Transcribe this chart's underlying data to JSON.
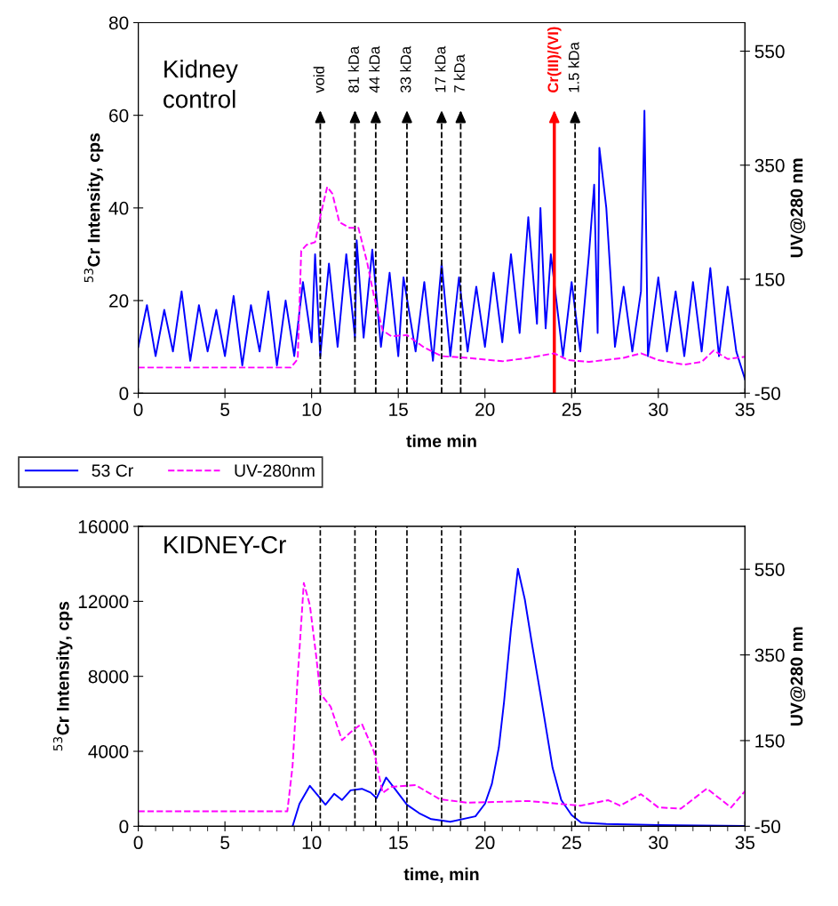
{
  "chart_data": [
    {
      "type": "line",
      "xlabel": "time min",
      "ylabel": "$^{53}$Cr Intensity, cps",
      "y2label": "UV@280 nm",
      "annotations": [
        "Kidney\ncontrol"
      ],
      "xlim": [
        0,
        35
      ],
      "xticks": [
        0,
        5,
        10,
        15,
        20,
        25,
        30,
        35
      ],
      "ylim": [
        0,
        80
      ],
      "yticks": [
        0,
        20,
        40,
        60,
        80
      ],
      "y2lim": [
        -50,
        600
      ],
      "y2ticks": [
        -50,
        150,
        350,
        550
      ],
      "grid": false,
      "legend": "bottom left",
      "marker": "none",
      "series": [
        {
          "name": "53 Cr",
          "color": "#0000ff",
          "line_style": "solid",
          "x": [
            0,
            0.5,
            1,
            1.5,
            2,
            2.5,
            3,
            3.5,
            4,
            4.5,
            5,
            5.5,
            6,
            6.5,
            7,
            7.5,
            8,
            8.5,
            9,
            9.5,
            10,
            10.2,
            10.5,
            11,
            11.5,
            12,
            12.5,
            12.6,
            13,
            13.5,
            14,
            14.5,
            15,
            15.3,
            16,
            16.5,
            17,
            17.5,
            18,
            18.5,
            19,
            19.5,
            20,
            20.5,
            21,
            21.5,
            22,
            22.5,
            23,
            23.2,
            23.5,
            23.8,
            24.5,
            25,
            25.5,
            26,
            26.3,
            26.5,
            26.6,
            27,
            27.5,
            28,
            28.5,
            29,
            29.2,
            29.4,
            30,
            30.5,
            31,
            31.5,
            32,
            32.5,
            33,
            33.5,
            34,
            34.5,
            35
          ],
          "values": [
            10,
            19,
            8,
            18,
            9,
            22,
            7,
            19,
            9,
            18,
            8,
            21,
            6,
            19,
            9,
            22,
            6,
            20,
            8,
            24,
            11,
            30,
            8,
            28,
            10,
            30,
            12,
            33,
            12,
            31,
            10,
            26,
            8,
            25,
            9,
            24,
            7,
            28,
            8,
            25,
            9,
            23,
            10,
            26,
            11,
            30,
            13,
            38,
            15,
            40,
            14,
            30,
            8,
            24,
            9,
            30,
            45,
            13,
            53,
            40,
            10,
            23,
            9,
            22,
            61,
            8,
            25,
            9,
            22,
            8,
            24,
            9,
            27,
            8,
            23,
            9,
            3
          ]
        },
        {
          "name": "UV-280nm",
          "color": "#ff00ff",
          "line_style": "dashed",
          "axis": "y2",
          "x": [
            0,
            8.8,
            9.2,
            9.4,
            9.7,
            10.2,
            10.5,
            10.9,
            11.2,
            11.6,
            12.2,
            12.7,
            13.2,
            13.6,
            14.1,
            14.6,
            15.5,
            16.5,
            17.5,
            19,
            21,
            22.5,
            24,
            24.8,
            26,
            28,
            29,
            30,
            31.5,
            32.5,
            33.2,
            34,
            35
          ],
          "values": [
            -5,
            -5,
            10,
            200,
            210,
            215,
            260,
            312,
            300,
            250,
            240,
            240,
            180,
            120,
            60,
            50,
            52,
            30,
            15,
            12,
            6,
            12,
            20,
            8,
            5,
            12,
            20,
            8,
            0,
            5,
            25,
            10,
            14
          ]
        }
      ],
      "ref_lines": [
        {
          "axis": "x",
          "value": 10.5,
          "label": "void",
          "color": "#000000",
          "line_style": "dashed"
        },
        {
          "axis": "x",
          "value": 12.5,
          "label": "81 kDa",
          "color": "#000000",
          "line_style": "dashed"
        },
        {
          "axis": "x",
          "value": 13.7,
          "label": "44 kDa",
          "color": "#000000",
          "line_style": "dashed"
        },
        {
          "axis": "x",
          "value": 15.5,
          "label": "33 kDa",
          "color": "#000000",
          "line_style": "dashed"
        },
        {
          "axis": "x",
          "value": 17.5,
          "label": "17 kDa",
          "color": "#000000",
          "line_style": "dashed"
        },
        {
          "axis": "x",
          "value": 18.6,
          "label": "7 kDa",
          "color": "#000000",
          "line_style": "dashed"
        },
        {
          "axis": "x",
          "value": 24.0,
          "label": "Cr(III)/(VI)",
          "color": "#ff0000",
          "line_style": "solid"
        },
        {
          "axis": "x",
          "value": 25.2,
          "label": "1.5 kDa",
          "color": "#000000",
          "line_style": "dashed"
        }
      ]
    },
    {
      "type": "line",
      "xlabel": "time, min",
      "ylabel": "$^{53}$Cr Intensity, cps",
      "y2label": "UV@280 nm",
      "annotations": [
        "KIDNEY-Cr"
      ],
      "xlim": [
        0,
        35
      ],
      "xticks": [
        0,
        {
          "value": 1,
          "label": null
        },
        {
          "value": 2,
          "label": null
        },
        {
          "value": 3,
          "label": null
        },
        {
          "value": 4,
          "label": null
        },
        5,
        {
          "value": 6,
          "label": null
        },
        {
          "value": 7,
          "label": null
        },
        {
          "value": 8,
          "label": null
        },
        {
          "value": 9,
          "label": null
        },
        10,
        {
          "value": 11,
          "label": null
        },
        {
          "value": 12,
          "label": null
        },
        {
          "value": 13,
          "label": null
        },
        {
          "value": 14,
          "label": null
        },
        15,
        {
          "value": 16,
          "label": null
        },
        {
          "value": 17,
          "label": null
        },
        {
          "value": 18,
          "label": null
        },
        {
          "value": 19,
          "label": null
        },
        20,
        {
          "value": 21,
          "label": null
        },
        {
          "value": 22,
          "label": null
        },
        {
          "value": 23,
          "label": null
        },
        {
          "value": 24,
          "label": null
        },
        25,
        {
          "value": 26,
          "label": null
        },
        {
          "value": 27,
          "label": null
        },
        {
          "value": 28,
          "label": null
        },
        {
          "value": 29,
          "label": null
        },
        30,
        {
          "value": 31,
          "label": null
        },
        {
          "value": 32,
          "label": null
        },
        {
          "value": 33,
          "label": null
        },
        {
          "value": 34,
          "label": null
        },
        35
      ],
      "ylim": [
        0,
        16000
      ],
      "yticks": [
        0,
        4000,
        8000,
        12000,
        16000
      ],
      "y2lim": [
        -50,
        650
      ],
      "y2ticks": [
        -50,
        150,
        350,
        550
      ],
      "grid": false,
      "marker": "none",
      "series": [
        {
          "color": "#0000ff",
          "line_style": "solid",
          "x": [
            8.9,
            9.3,
            9.9,
            10.4,
            10.8,
            11.3,
            11.75,
            12.25,
            12.9,
            13.4,
            13.75,
            14.3,
            14.8,
            15.5,
            16.2,
            16.9,
            18.0,
            19.45,
            20.0,
            20.4,
            20.8,
            21.1,
            21.5,
            21.9,
            22.3,
            22.7,
            23.2,
            23.9,
            24.4,
            25.0,
            25.55,
            27,
            30,
            35
          ],
          "values": [
            0,
            1200,
            2160,
            1600,
            1150,
            1730,
            1400,
            1920,
            2000,
            1800,
            1500,
            2600,
            2000,
            1150,
            700,
            380,
            240,
            530,
            1200,
            2260,
            4200,
            6630,
            10500,
            13740,
            12100,
            9800,
            7060,
            3120,
            1400,
            600,
            190,
            120,
            60,
            20
          ]
        },
        {
          "color": "#ff00ff",
          "line_style": "dashed",
          "axis": "y2",
          "x": [
            0,
            8.6,
            8.9,
            9.2,
            9.55,
            9.9,
            10.25,
            10.5,
            11.1,
            11.75,
            12.4,
            12.9,
            13.6,
            14.1,
            14.6,
            16,
            17.4,
            19,
            22.5,
            25.5,
            27.1,
            27.8,
            29,
            30,
            31.3,
            32.8,
            34.2,
            35
          ],
          "values": [
            -15,
            -15,
            90,
            300,
            518,
            466,
            352,
            260,
            229,
            151,
            175,
            189,
            124,
            28,
            42,
            46,
            13,
            5,
            9,
            -2,
            11,
            -2,
            25,
            -6,
            -9,
            38,
            -6,
            32
          ]
        }
      ],
      "ref_lines": [
        {
          "axis": "x",
          "value": 10.5,
          "color": "#000000",
          "line_style": "dashed"
        },
        {
          "axis": "x",
          "value": 12.5,
          "color": "#000000",
          "line_style": "dashed"
        },
        {
          "axis": "x",
          "value": 13.7,
          "color": "#000000",
          "line_style": "dashed"
        },
        {
          "axis": "x",
          "value": 15.5,
          "color": "#000000",
          "line_style": "dashed"
        },
        {
          "axis": "x",
          "value": 17.5,
          "color": "#000000",
          "line_style": "dashed"
        },
        {
          "axis": "x",
          "value": 18.6,
          "color": "#000000",
          "line_style": "dashed"
        },
        {
          "axis": "x",
          "value": 25.2,
          "color": "#000000",
          "line_style": "dashed"
        }
      ]
    }
  ]
}
